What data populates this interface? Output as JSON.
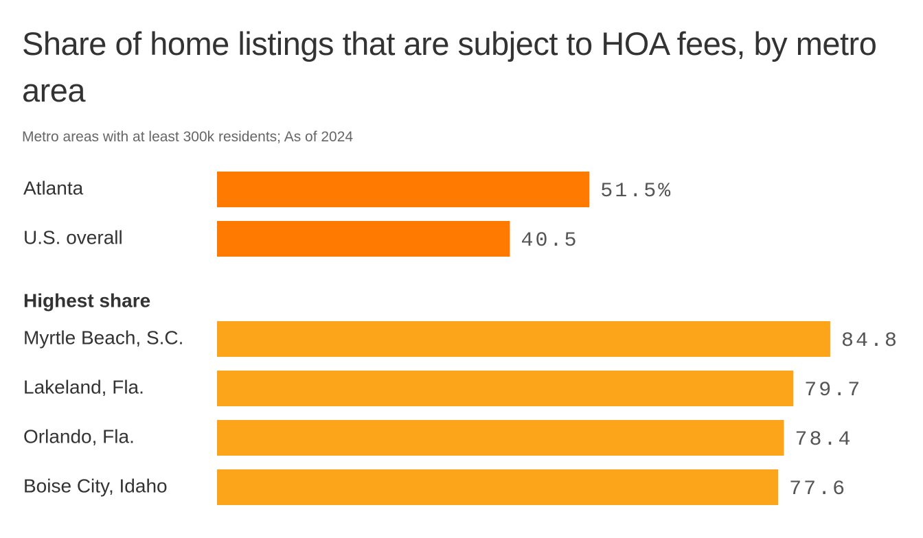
{
  "chart_data": {
    "type": "bar",
    "orientation": "horizontal",
    "title": "Share of home listings that are subject to HOA fees, by metro area",
    "subtitle": "Metro areas with at least 300k residents; As of 2024",
    "groups": [
      {
        "categories": [
          "Atlanta",
          "U.S. overall"
        ],
        "values": [
          51.5,
          40.5
        ],
        "value_labels": [
          "51.5%",
          "40.5"
        ],
        "color": "#ff7a00"
      },
      {
        "name": "Highest share",
        "categories": [
          "Myrtle Beach, S.C.",
          "Lakeland, Fla.",
          "Orlando, Fla.",
          "Boise City, Idaho"
        ],
        "values": [
          84.8,
          79.7,
          78.4,
          77.6
        ],
        "color": "#fda51a"
      }
    ]
  }
}
